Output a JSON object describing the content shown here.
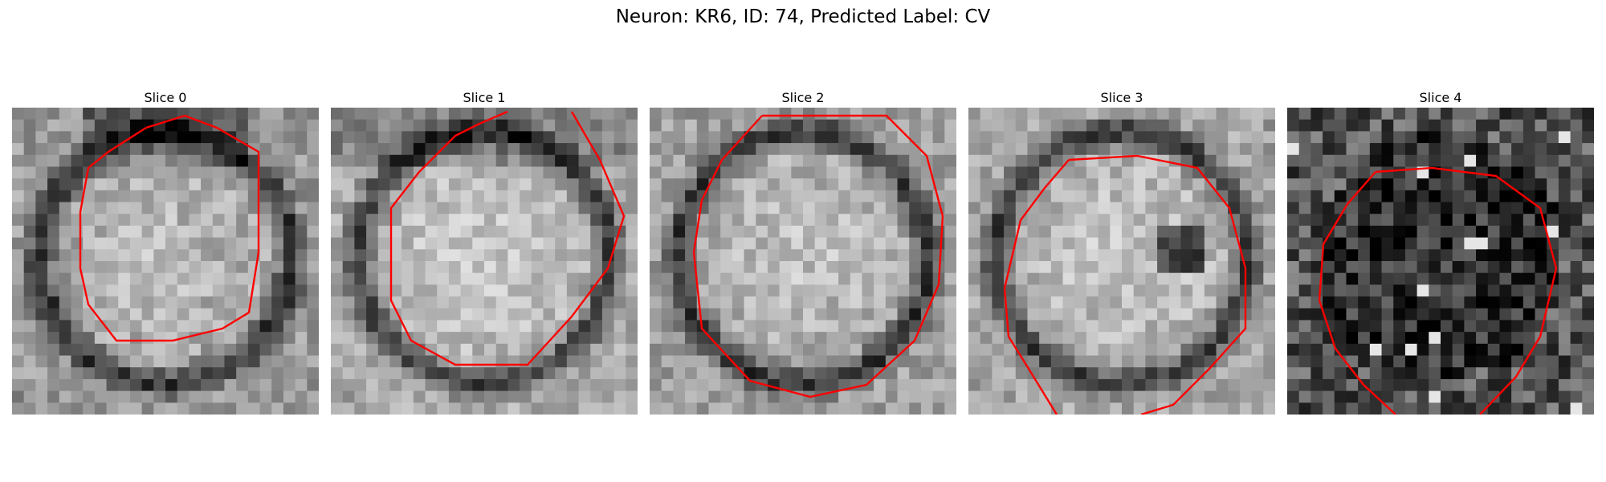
{
  "figure": {
    "suptitle": "Neuron: KR6, ID: 74, Predicted Label: CV",
    "contour_color": "#ff0000"
  },
  "panels": [
    {
      "title": "Slice 0",
      "seed": 11,
      "base": 0.62,
      "contrast": 0.28
    },
    {
      "title": "Slice 1",
      "seed": 23,
      "base": 0.68,
      "contrast": 0.25
    },
    {
      "title": "Slice 2",
      "seed": 37,
      "base": 0.64,
      "contrast": 0.27
    },
    {
      "title": "Slice 3",
      "seed": 51,
      "base": 0.66,
      "contrast": 0.26
    },
    {
      "title": "Slice 4",
      "seed": 67,
      "base": 0.18,
      "contrast": 0.2
    }
  ]
}
